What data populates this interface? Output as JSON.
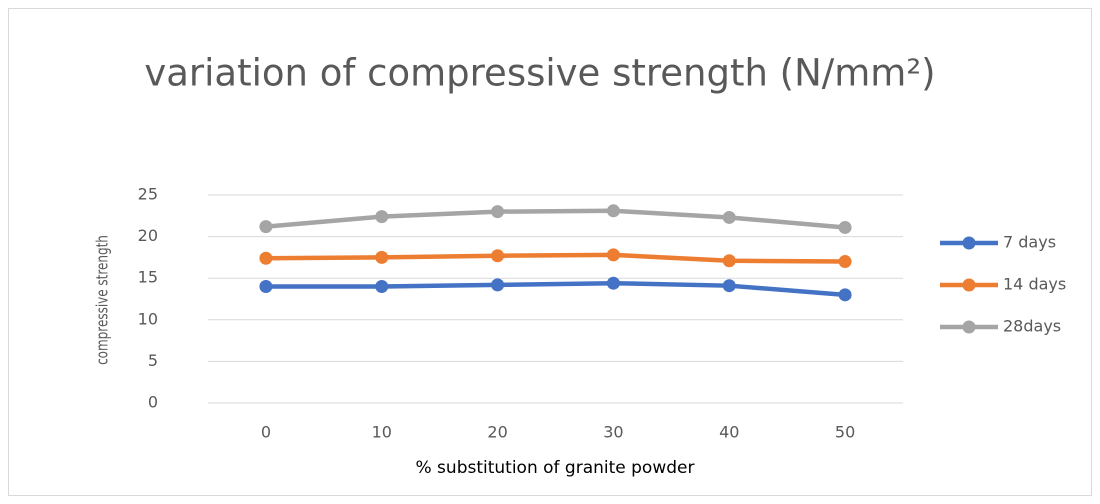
{
  "chart_data": {
    "type": "line",
    "title": "variation of compressive strength (N/mm²)",
    "x_label": "% substitution of granite powder",
    "y_label": "compressive strength",
    "categories": [
      "0",
      "10",
      "20",
      "30",
      "40",
      "50"
    ],
    "series": [
      {
        "name": "7 days",
        "color": "#4472c4",
        "values": [
          14.0,
          14.0,
          14.2,
          14.4,
          14.1,
          13.0
        ]
      },
      {
        "name": "14 days",
        "color": "#ed7d31",
        "values": [
          17.4,
          17.5,
          17.7,
          17.8,
          17.1,
          17.0
        ]
      },
      {
        "name": "28days",
        "color": "#a5a5a5",
        "values": [
          21.2,
          22.4,
          23.0,
          23.1,
          22.3,
          21.1
        ]
      }
    ],
    "ylim": [
      0,
      25
    ],
    "yticks": [
      0,
      5,
      10,
      15,
      20,
      25
    ],
    "grid": true,
    "legend": "right"
  }
}
